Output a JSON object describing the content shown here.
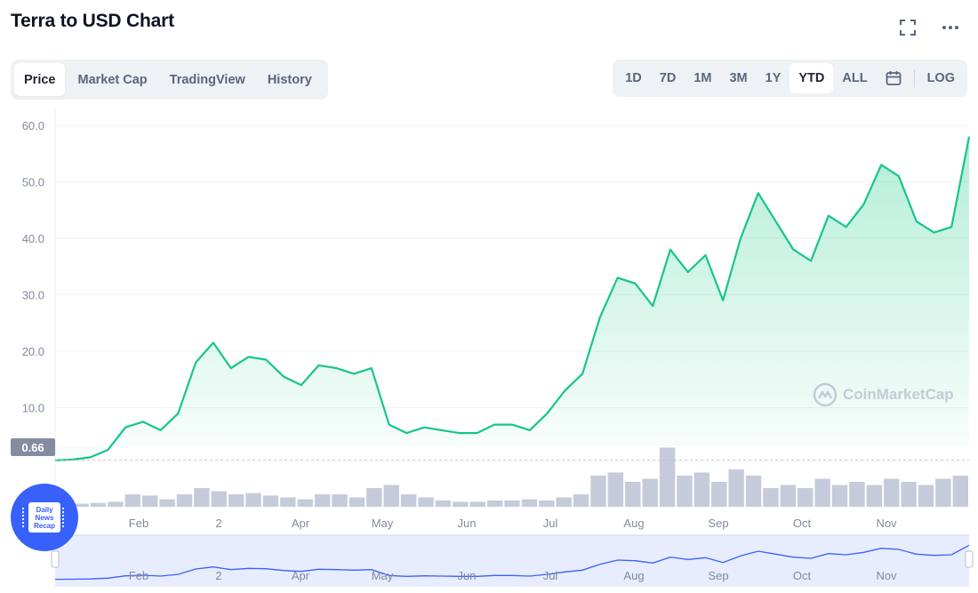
{
  "header": {
    "title": "Terra to USD Chart",
    "icons": {
      "fullscreen": "fullscreen-icon",
      "more": "more-icon"
    }
  },
  "tabs": [
    {
      "label": "Price",
      "active": true
    },
    {
      "label": "Market Cap",
      "active": false
    },
    {
      "label": "TradingView",
      "active": false
    },
    {
      "label": "History",
      "active": false
    }
  ],
  "ranges": [
    {
      "label": "1D",
      "active": false
    },
    {
      "label": "7D",
      "active": false
    },
    {
      "label": "1M",
      "active": false
    },
    {
      "label": "3M",
      "active": false
    },
    {
      "label": "1Y",
      "active": false
    },
    {
      "label": "YTD",
      "active": true
    },
    {
      "label": "ALL",
      "active": false
    }
  ],
  "calendar_icon": "calendar-icon",
  "log_label": "LOG",
  "watermark": "CoinMarketCap",
  "news_badge": [
    "Daily",
    "News",
    "Recap"
  ],
  "colors": {
    "line": "#16c784",
    "volume": "#c6cbdb",
    "nav_line": "#3861fb",
    "nav_fill": "#e8ecff",
    "current_price_tag": "#858ca2"
  },
  "chart_data": {
    "type": "area",
    "ylim": [
      0,
      60
    ],
    "yticks": [
      "60.0",
      "50.0",
      "40.0",
      "30.0",
      "20.0",
      "10.0"
    ],
    "current_price_label": "0.66",
    "x_tick_labels": [
      "Feb",
      "2",
      "Apr",
      "May",
      "Jun",
      "Jul",
      "Aug",
      "Sep",
      "Oct",
      "Nov"
    ],
    "x": [
      "Jan 1",
      "Jan 15",
      "Jan 25",
      "Feb 1",
      "Feb 5",
      "Feb 15",
      "Feb 25",
      "Mar 1",
      "Mar 10",
      "Mar 15",
      "Mar 20",
      "Mar 25",
      "Apr 1",
      "Apr 10",
      "Apr 20",
      "Apr 25",
      "May 1",
      "May 10",
      "May 15",
      "May 20",
      "May 22",
      "May 25",
      "Jun 1",
      "Jun 10",
      "Jun 20",
      "Jul 1",
      "Jul 10",
      "Jul 20",
      "Jul 25",
      "Aug 1",
      "Aug 10",
      "Aug 15",
      "Aug 20",
      "Aug 25",
      "Sep 1",
      "Sep 5",
      "Sep 10",
      "Sep 15",
      "Sep 20",
      "Sep 25",
      "Oct 1",
      "Oct 5",
      "Oct 10",
      "Oct 15",
      "Oct 20",
      "Oct 25",
      "Nov 1",
      "Nov 5",
      "Nov 10",
      "Nov 15",
      "Nov 20",
      "Nov 25",
      "Nov 30"
    ],
    "series": [
      {
        "values": [
          0.66,
          0.8,
          1.2,
          2.5,
          6.5,
          7.5,
          6.0,
          9.0,
          18.0,
          21.5,
          17.0,
          19.0,
          18.5,
          15.5,
          14.0,
          17.5,
          17.0,
          16.0,
          17.0,
          7.0,
          5.5,
          6.5,
          6.0,
          5.5,
          5.5,
          7.0,
          7.0,
          6.0,
          9.0,
          13.0,
          16.0,
          26.0,
          33.0,
          32.0,
          28.0,
          38.0,
          34.0,
          37.0,
          29.0,
          40.0,
          48.0,
          43.0,
          38.0,
          36.0,
          44.0,
          42.0,
          46.0,
          53.0,
          51.0,
          43.0,
          41.0,
          42.0,
          58.0
        ]
      }
    ],
    "volume": [
      0.05,
      0.05,
      0.06,
      0.08,
      0.2,
      0.18,
      0.12,
      0.2,
      0.3,
      0.25,
      0.2,
      0.22,
      0.18,
      0.15,
      0.12,
      0.2,
      0.2,
      0.15,
      0.3,
      0.35,
      0.2,
      0.15,
      0.1,
      0.08,
      0.08,
      0.1,
      0.1,
      0.12,
      0.1,
      0.15,
      0.2,
      0.5,
      0.55,
      0.4,
      0.45,
      0.95,
      0.5,
      0.55,
      0.4,
      0.6,
      0.5,
      0.3,
      0.35,
      0.3,
      0.45,
      0.35,
      0.4,
      0.35,
      0.45,
      0.4,
      0.35,
      0.45,
      0.5
    ]
  }
}
